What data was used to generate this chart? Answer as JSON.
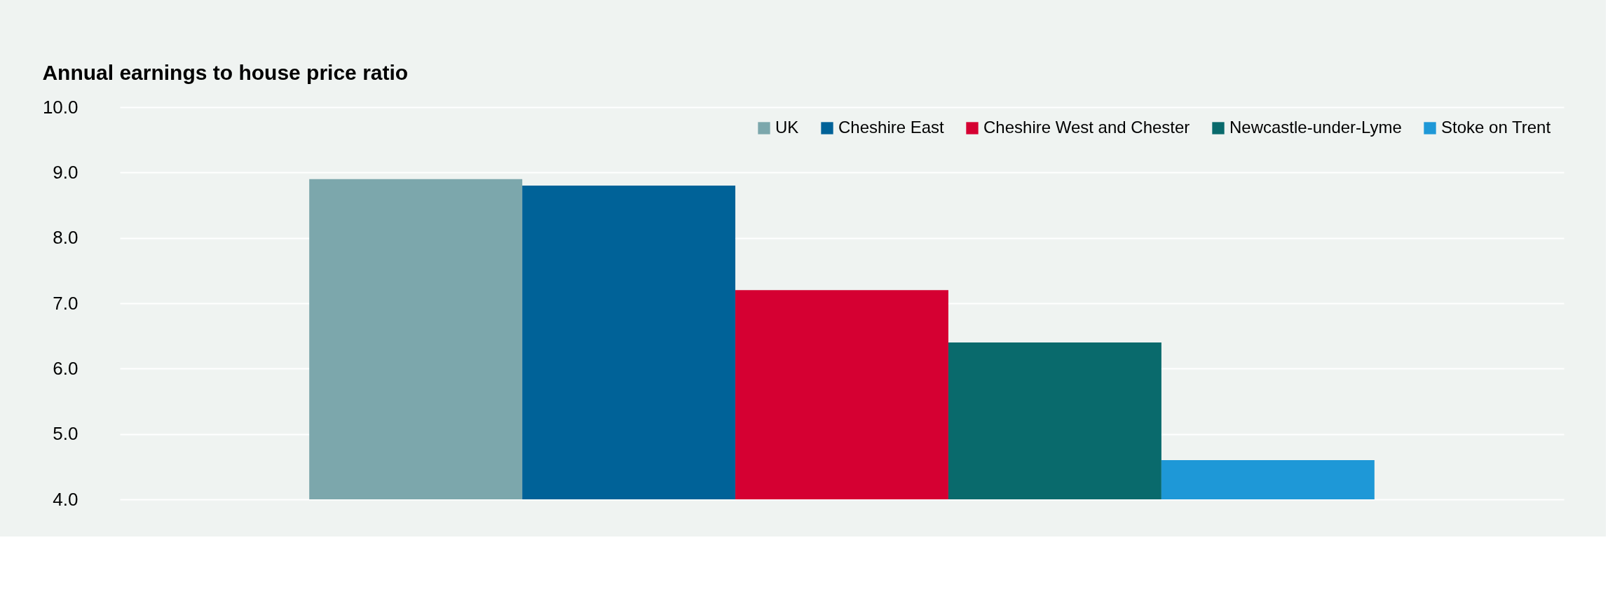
{
  "chart_data": {
    "type": "bar",
    "title": "Annual earnings to house price ratio",
    "categories": [
      null
    ],
    "series": [
      {
        "name": "UK",
        "color": "#7ca7ac",
        "values": [
          8.9
        ]
      },
      {
        "name": "Cheshire East",
        "color": "#006298",
        "values": [
          8.8
        ]
      },
      {
        "name": "Cheshire West and Chester",
        "color": "#d50032",
        "values": [
          7.2
        ]
      },
      {
        "name": "Newcastle-under-Lyme",
        "color": "#096a6c",
        "values": [
          6.4
        ]
      },
      {
        "name": "Stoke on Trent",
        "color": "#1e98d7",
        "values": [
          4.6
        ]
      }
    ],
    "ylim": [
      4,
      10
    ],
    "yticks": [
      {
        "value": 4,
        "label": "4.0"
      },
      {
        "value": 5,
        "label": "5.0"
      },
      {
        "value": 6,
        "label": "6.0"
      },
      {
        "value": 7,
        "label": "7.0"
      },
      {
        "value": 8,
        "label": "8.0"
      },
      {
        "value": 9,
        "label": "9.0"
      },
      {
        "value": 10,
        "label": "10.0"
      }
    ],
    "grid": "y",
    "legend": "top right"
  }
}
